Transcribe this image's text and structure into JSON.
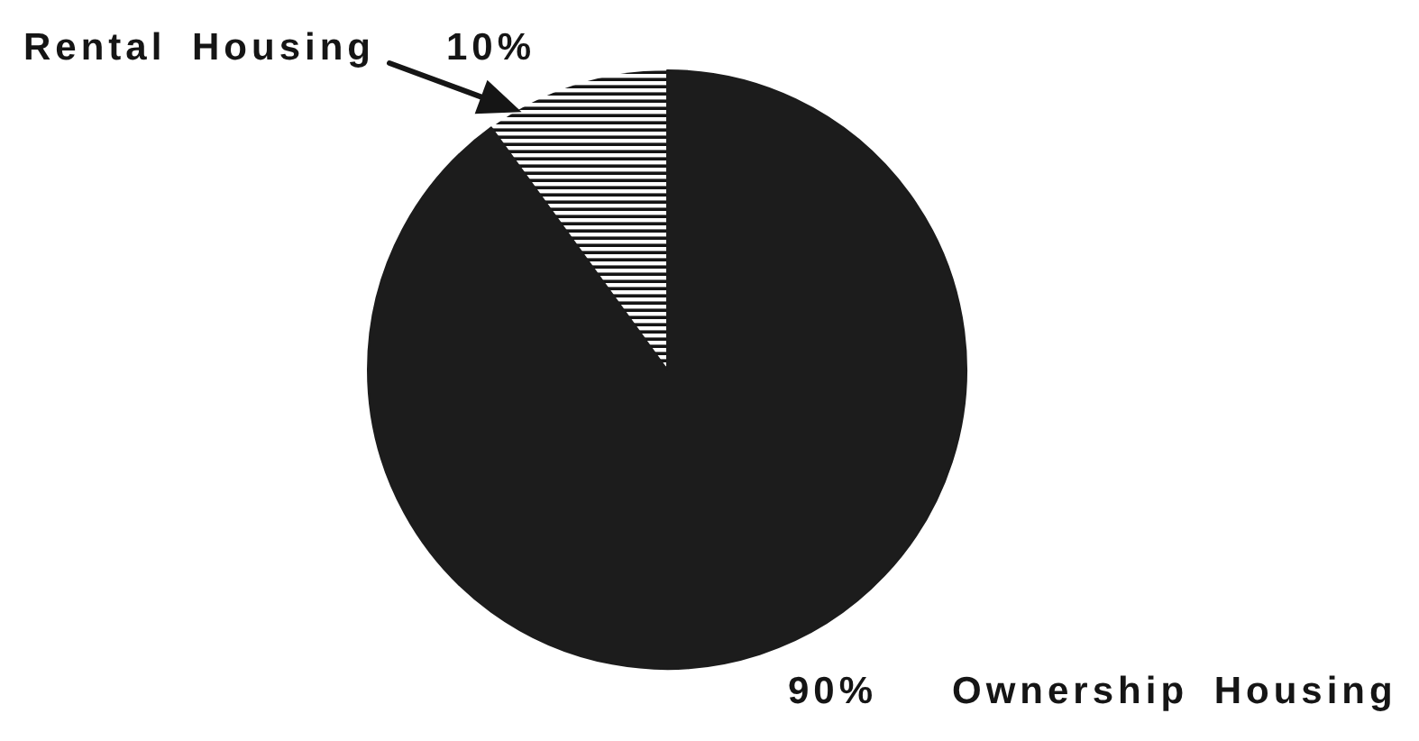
{
  "chart_data": {
    "type": "pie",
    "categories": [
      "Rental Housing",
      "Ownership Housing"
    ],
    "values": [
      10,
      90
    ],
    "colors": [
      "#ffffff",
      "#1c1c1c"
    ],
    "value_labels": [
      "10%",
      "90%"
    ]
  }
}
